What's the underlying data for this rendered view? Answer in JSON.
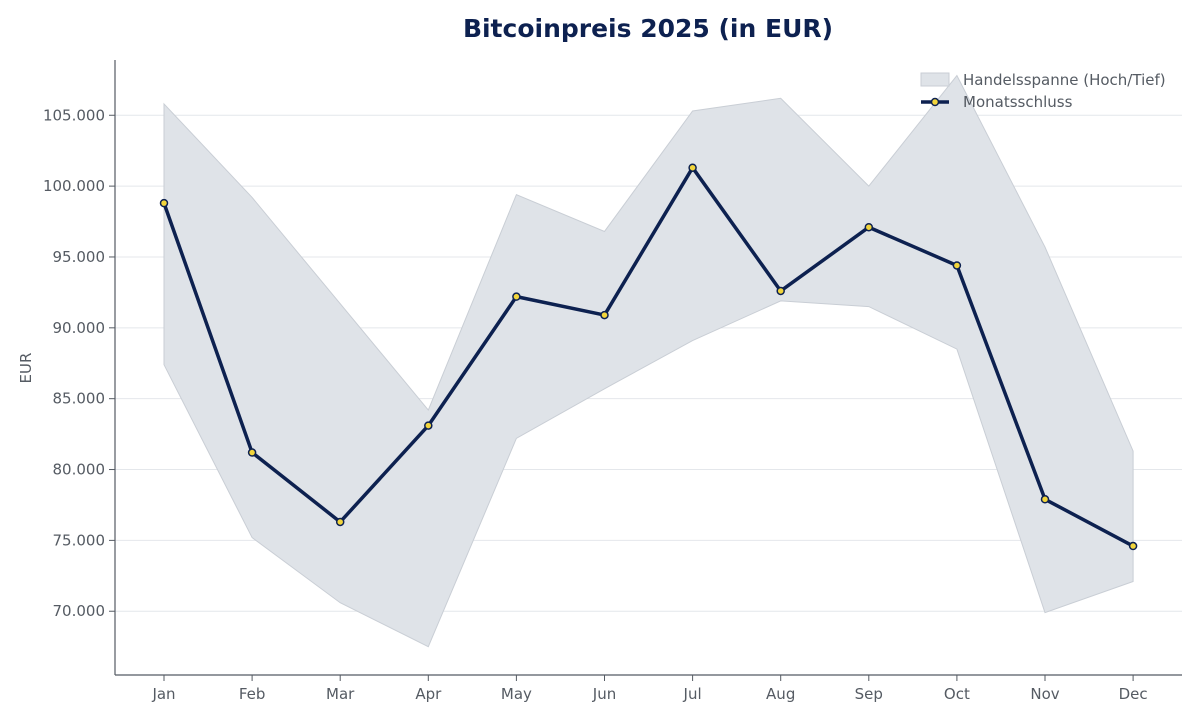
{
  "chart_data": {
    "type": "line",
    "title": "Bitcoinpreis 2025 (in EUR)",
    "xlabel": "",
    "ylabel": "EUR",
    "categories": [
      "Jan",
      "Feb",
      "Mar",
      "Apr",
      "May",
      "Jun",
      "Jul",
      "Aug",
      "Sep",
      "Oct",
      "Nov",
      "Dec"
    ],
    "ylim": [
      65500,
      108900
    ],
    "yticks": [
      70000,
      75000,
      80000,
      85000,
      90000,
      95000,
      100000,
      105000
    ],
    "ytick_labels": [
      "70.000",
      "75.000",
      "80.000",
      "85.000",
      "90.000",
      "95.000",
      "100.000",
      "105.000"
    ],
    "grid": "horizontal",
    "legend": "top-right",
    "series": [
      {
        "name": "Monatsschluss",
        "kind": "line",
        "color": "#0d2150",
        "marker_color": "#f2d53c",
        "values": [
          98800,
          81200,
          76300,
          83100,
          92200,
          90900,
          101300,
          92600,
          97100,
          94400,
          77900,
          74600
        ]
      },
      {
        "name": "Handelsspanne (Hoch/Tief)",
        "kind": "band",
        "color": "#dfe3e8",
        "high": [
          105800,
          99200,
          91700,
          84200,
          99400,
          96800,
          105300,
          106200,
          100000,
          107800,
          95700,
          81300
        ],
        "low": [
          87400,
          75200,
          70600,
          67500,
          82200,
          85700,
          89100,
          91900,
          91500,
          88500,
          69900,
          72100
        ]
      }
    ]
  }
}
